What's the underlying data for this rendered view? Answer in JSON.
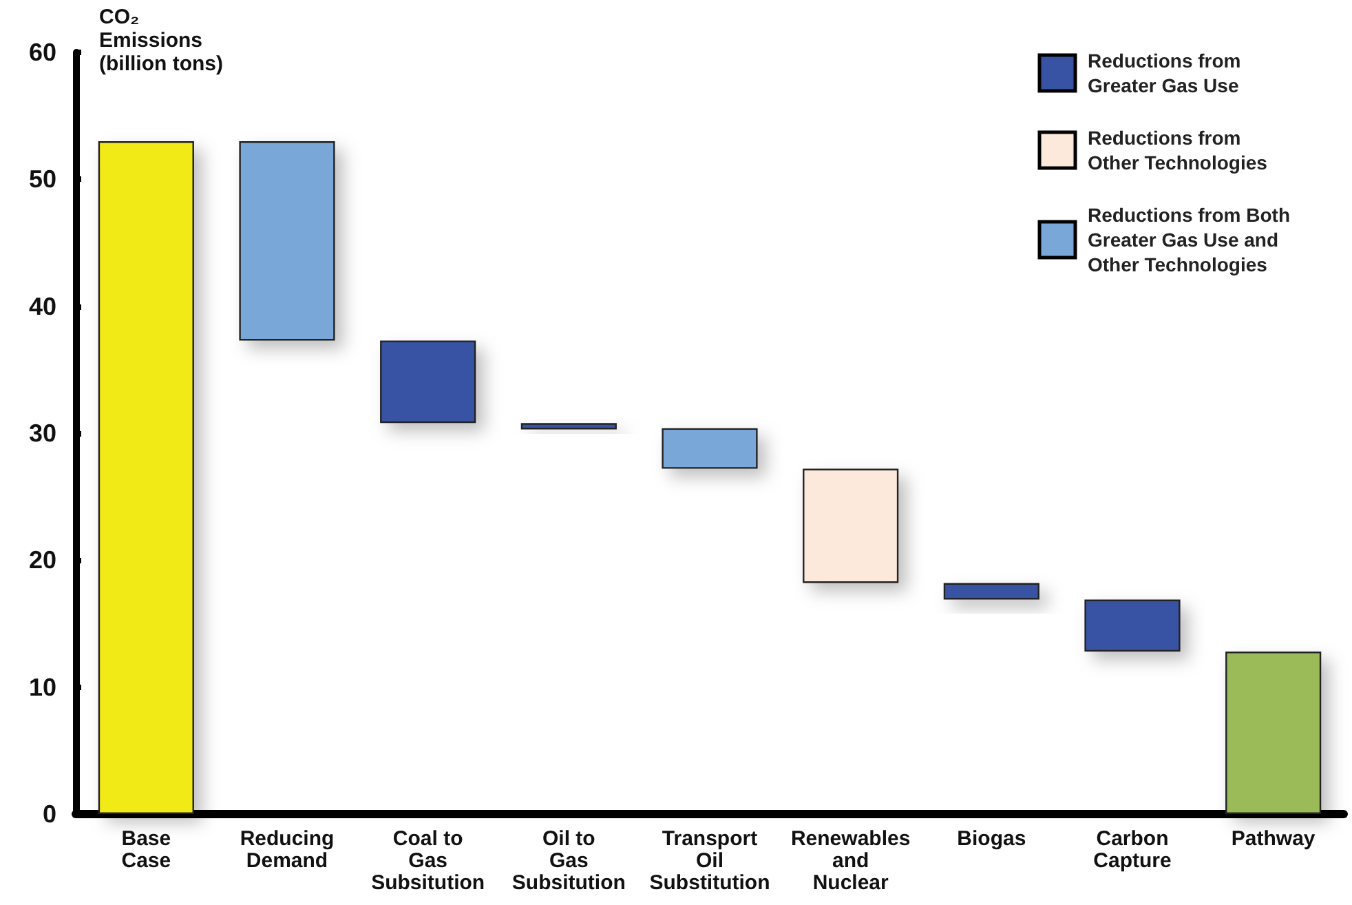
{
  "chart_data": {
    "type": "bar",
    "ylabel": "CO₂ Emissions (billion tons)",
    "categories": [
      "Base Case",
      "Reducing Demand",
      "Coal to Gas Subsitution",
      "Oil to Gas Subsitution",
      "Transport Oil Substitution",
      "Renewables and Nuclear",
      "Biogas",
      "Carbon Capture",
      "Pathway"
    ],
    "series": [
      {
        "color": "#f2ea19",
        "values": [
          53,
          null,
          null,
          null,
          null,
          null,
          null,
          null,
          null
        ],
        "base": [
          0,
          null,
          null,
          null,
          null,
          null,
          null,
          null,
          null
        ]
      },
      {
        "name": "Reductions from Greater Gas Use",
        "color": "#3953a4",
        "values": [
          null,
          null,
          6.5,
          0.5,
          null,
          null,
          1.3,
          4.1,
          null
        ],
        "base": [
          null,
          null,
          30.8,
          30.3,
          null,
          null,
          16.9,
          12.8,
          null
        ]
      },
      {
        "name": "Reductions from Other Technologies",
        "color": "#fde9db",
        "values": [
          null,
          null,
          null,
          null,
          null,
          9.0,
          null,
          null,
          null
        ],
        "base": [
          null,
          null,
          null,
          null,
          null,
          18.2,
          null,
          null,
          null
        ]
      },
      {
        "name": "Reductions from Both Greater Gas Use and Other Technologies",
        "color": "#79a8d8",
        "values": [
          null,
          15.7,
          null,
          null,
          3.2,
          null,
          null,
          null,
          null
        ],
        "base": [
          null,
          37.3,
          null,
          null,
          27.2,
          null,
          null,
          null,
          null
        ]
      },
      {
        "color": "#9bbb59",
        "values": [
          null,
          null,
          null,
          null,
          null,
          null,
          null,
          null,
          12.8
        ],
        "base": [
          null,
          null,
          null,
          null,
          null,
          null,
          null,
          null,
          0
        ]
      }
    ],
    "ylim": [
      0,
      60
    ],
    "yticks": [
      0,
      10,
      20,
      30,
      40,
      50,
      60
    ],
    "grid": false,
    "legend": "top right"
  }
}
